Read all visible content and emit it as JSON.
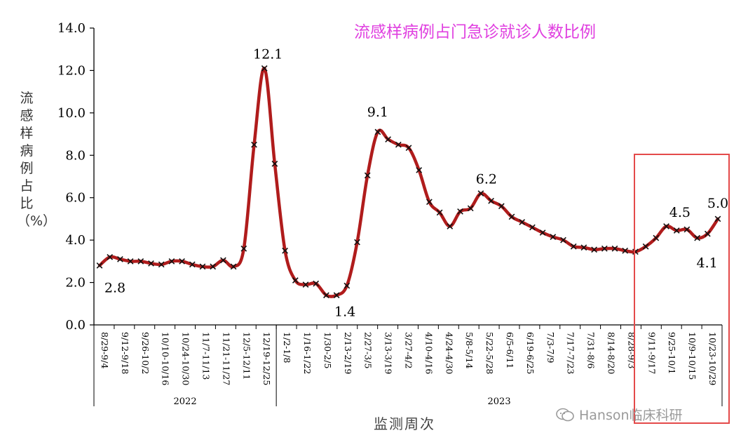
{
  "chart_data": {
    "type": "line",
    "title": "流感样病例占门急诊就诊人数比例",
    "ylabel": "流感样病例占比（%）",
    "xlabel": "监测周次",
    "ylim": [
      0,
      14
    ],
    "yticks": [
      "0.0",
      "2.0",
      "4.0",
      "6.0",
      "8.0",
      "10.0",
      "12.0",
      "14.0"
    ],
    "year_labels": [
      {
        "label": "2022",
        "start_index": 0,
        "end_index": 17
      },
      {
        "label": "2023",
        "start_index": 18,
        "end_index": 61
      }
    ],
    "tick_labels": [
      "8/29-9/4",
      "9/12-9/18",
      "9/26-10/2",
      "10/10-10/16",
      "10/24-10/30",
      "11/7-11/13",
      "11/21-11/27",
      "12/5-12/11",
      "12/19-12/25",
      "1/2-1/8",
      "1/16-1/22",
      "1/30-2/5",
      "2/13-2/19",
      "2/27-3/5",
      "3/13-3/19",
      "3/27-4/2",
      "4/10-4/16",
      "4/24-4/30",
      "5/8-5/14",
      "5/22-5/28",
      "6/5-6/11",
      "6/19-6/25",
      "7/3-7/9",
      "7/17-7/23",
      "7/31-8/6",
      "8/14-8/20",
      "8/28-9/3",
      "9/11-9/17",
      "9/25-10/1",
      "10/9-10/15",
      "10/23-10/29"
    ],
    "series": [
      {
        "name": "",
        "color": "#b01c1c",
        "values": [
          2.8,
          3.2,
          3.1,
          3.0,
          3.0,
          2.9,
          2.85,
          3.0,
          3.0,
          2.85,
          2.75,
          2.75,
          3.05,
          2.75,
          3.6,
          8.5,
          12.1,
          7.6,
          3.5,
          2.1,
          1.9,
          1.95,
          1.4,
          1.4,
          1.85,
          3.9,
          7.05,
          9.1,
          8.75,
          8.5,
          8.35,
          7.3,
          5.8,
          5.3,
          4.65,
          5.35,
          5.5,
          6.2,
          5.85,
          5.6,
          5.1,
          4.85,
          4.6,
          4.35,
          4.15,
          4.0,
          3.7,
          3.65,
          3.55,
          3.6,
          3.6,
          3.5,
          3.45,
          3.7,
          4.1,
          4.65,
          4.45,
          4.5,
          4.1,
          4.3,
          5.0
        ]
      }
    ],
    "annotations": [
      {
        "text": "2.8",
        "index": 0
      },
      {
        "text": "12.1",
        "index": 16
      },
      {
        "text": "1.4",
        "index": 23
      },
      {
        "text": "9.1",
        "index": 27
      },
      {
        "text": "6.2",
        "index": 37
      },
      {
        "text": "4.5",
        "index": 57
      },
      {
        "text": "4.1",
        "index": 58
      },
      {
        "text": "5.0",
        "index": 60
      }
    ]
  },
  "highlight": {
    "label": "recent-weeks",
    "border_color": "#e44a4a"
  },
  "watermark": {
    "text": "Hanson临床科研"
  }
}
